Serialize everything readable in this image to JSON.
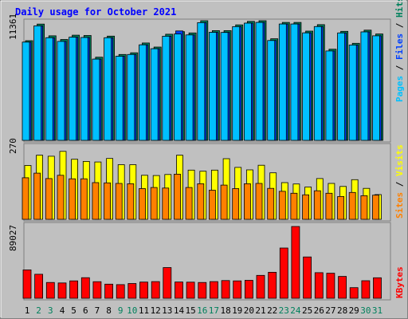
{
  "chart_data": [
    {
      "type": "bar",
      "title": "Daily usage for October 2021",
      "categories": [
        "1",
        "2",
        "3",
        "4",
        "5",
        "6",
        "7",
        "8",
        "9",
        "10",
        "11",
        "12",
        "13",
        "14",
        "15",
        "16",
        "17",
        "18",
        "19",
        "20",
        "21",
        "22",
        "23",
        "24",
        "25",
        "26",
        "27",
        "28",
        "29",
        "30",
        "31"
      ],
      "weekend_days": [
        2,
        3,
        9,
        10,
        16,
        17,
        23,
        24,
        30,
        31
      ],
      "ymax_label": "11361",
      "ylim": [
        0,
        11361
      ],
      "series": [
        {
          "name": "Hits",
          "color": "#00805c",
          "values": [
            9470,
            11045,
            9930,
            9580,
            9990,
            9960,
            7900,
            9900,
            8160,
            8320,
            9250,
            8860,
            10080,
            10320,
            10200,
            11361,
            10420,
            10420,
            10970,
            11300,
            11361,
            9650,
            11200,
            11200,
            10380,
            10990,
            8660,
            10350,
            9220,
            10470,
            10100
          ]
        },
        {
          "name": "Files",
          "color": "#0040ff",
          "values": [
            9330,
            10880,
            9750,
            9400,
            9800,
            9770,
            7720,
            9750,
            7990,
            8160,
            9070,
            8700,
            9890,
            10390,
            10010,
            11180,
            10260,
            10250,
            10800,
            11130,
            11200,
            9480,
            11050,
            11050,
            10210,
            10810,
            8490,
            10200,
            9060,
            10300,
            9930
          ]
        },
        {
          "name": "Pages",
          "color": "#00c0ff",
          "values": [
            9330,
            10880,
            9750,
            9400,
            9800,
            9770,
            7720,
            9750,
            7990,
            8160,
            9070,
            8700,
            9890,
            10100,
            10010,
            11180,
            10260,
            10250,
            10800,
            11130,
            11200,
            9480,
            11050,
            11050,
            10210,
            10810,
            8490,
            10200,
            9060,
            10300,
            9930
          ]
        }
      ]
    },
    {
      "type": "bar",
      "ymax_label": "270",
      "ylim": [
        0,
        270
      ],
      "series": [
        {
          "name": "Visits",
          "color": "#ffff00",
          "values": [
            198,
            236,
            232,
            250,
            221,
            213,
            211,
            224,
            201,
            201,
            162,
            161,
            165,
            236,
            181,
            177,
            181,
            223,
            191,
            182,
            199,
            171,
            135,
            130,
            119,
            150,
            132,
            121,
            146,
            114,
            91
          ]
        },
        {
          "name": "Sites",
          "color": "#ff8000",
          "values": [
            153,
            170,
            150,
            162,
            149,
            149,
            135,
            134,
            132,
            131,
            113,
            117,
            115,
            166,
            117,
            131,
            107,
            126,
            113,
            131,
            132,
            114,
            103,
            96,
            90,
            105,
            96,
            84,
            99,
            87,
            89
          ]
        }
      ]
    },
    {
      "type": "bar",
      "ymax_label": "89027",
      "ylim": [
        0,
        89027
      ],
      "series": [
        {
          "name": "KBytes",
          "color": "#ff0000",
          "values": [
            35200,
            29800,
            19600,
            19000,
            21600,
            25500,
            20600,
            17500,
            16900,
            18300,
            20100,
            20700,
            38100,
            20200,
            20000,
            19600,
            20700,
            22000,
            21600,
            22300,
            28400,
            32200,
            62300,
            89027,
            51200,
            31800,
            31100,
            27100,
            13200,
            21800,
            25400
          ]
        }
      ]
    }
  ]
}
